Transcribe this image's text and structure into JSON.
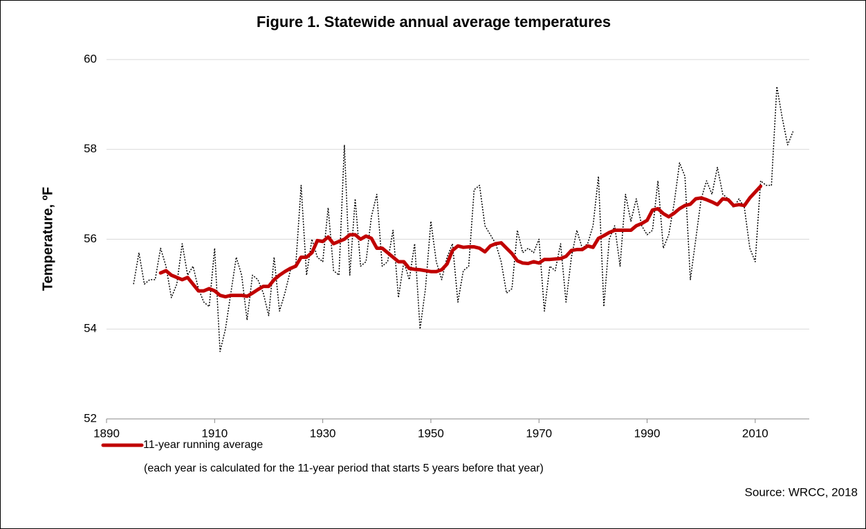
{
  "chart_data": {
    "type": "line",
    "title": "Figure 1. Statewide annual average temperatures",
    "y_label": "Temperature, ºF",
    "legend_note": "(each year is calculated for the 11-year period that starts 5 years before that year)",
    "source": "Source: WRCC, 2018",
    "x": [
      1895,
      1896,
      1897,
      1898,
      1899,
      1900,
      1901,
      1902,
      1903,
      1904,
      1905,
      1906,
      1907,
      1908,
      1909,
      1910,
      1911,
      1912,
      1913,
      1914,
      1915,
      1916,
      1917,
      1918,
      1919,
      1920,
      1921,
      1922,
      1923,
      1924,
      1925,
      1926,
      1927,
      1928,
      1929,
      1930,
      1931,
      1932,
      1933,
      1934,
      1935,
      1936,
      1937,
      1938,
      1939,
      1940,
      1941,
      1942,
      1943,
      1944,
      1945,
      1946,
      1947,
      1948,
      1949,
      1950,
      1951,
      1952,
      1953,
      1954,
      1955,
      1956,
      1957,
      1958,
      1959,
      1960,
      1961,
      1962,
      1963,
      1964,
      1965,
      1966,
      1967,
      1968,
      1969,
      1970,
      1971,
      1972,
      1973,
      1974,
      1975,
      1976,
      1977,
      1978,
      1979,
      1980,
      1981,
      1982,
      1983,
      1984,
      1985,
      1986,
      1987,
      1988,
      1989,
      1990,
      1991,
      1992,
      1993,
      1994,
      1995,
      1996,
      1997,
      1998,
      1999,
      2000,
      2001,
      2002,
      2003,
      2004,
      2005,
      2006,
      2007,
      2008,
      2009,
      2010,
      2011,
      2012,
      2013,
      2014,
      2015,
      2016,
      2017
    ],
    "series": [
      {
        "color": "#000000",
        "style": "dotted",
        "values": [
          55.0,
          55.7,
          55.0,
          55.1,
          55.1,
          55.8,
          55.4,
          54.7,
          55.0,
          55.9,
          55.2,
          55.4,
          54.9,
          54.6,
          54.5,
          55.8,
          53.5,
          54.0,
          54.8,
          55.6,
          55.2,
          54.2,
          55.2,
          55.1,
          54.8,
          54.3,
          55.6,
          54.4,
          54.8,
          55.3,
          55.4,
          57.2,
          55.2,
          56.0,
          55.6,
          55.5,
          56.7,
          55.3,
          55.2,
          58.1,
          55.2,
          56.9,
          55.4,
          55.5,
          56.5,
          57.0,
          55.4,
          55.5,
          56.2,
          54.7,
          55.5,
          55.1,
          55.9,
          54.0,
          54.9,
          56.4,
          55.5,
          55.1,
          55.6,
          55.9,
          54.6,
          55.3,
          55.4,
          57.1,
          57.2,
          56.3,
          56.1,
          55.9,
          55.5,
          54.8,
          54.9,
          56.2,
          55.7,
          55.8,
          55.7,
          56.0,
          54.4,
          55.4,
          55.3,
          55.9,
          54.6,
          55.6,
          56.2,
          55.8,
          55.9,
          56.3,
          57.4,
          54.5,
          56.0,
          56.3,
          55.4,
          57.0,
          56.4,
          56.9,
          56.3,
          56.1,
          56.2,
          57.3,
          55.8,
          56.1,
          56.8,
          57.7,
          57.4,
          55.1,
          56.0,
          56.9,
          57.3,
          57.0,
          57.6,
          57.0,
          56.9,
          56.7,
          56.9,
          56.7,
          55.8,
          55.5,
          57.3,
          57.2,
          57.2,
          59.4,
          58.7,
          58.1,
          58.4
        ]
      },
      {
        "name": "11-year running average",
        "color": "#c00000",
        "style": "solid",
        "values": [
          null,
          null,
          null,
          null,
          null,
          55.25,
          55.3,
          55.2,
          55.15,
          55.1,
          55.15,
          55.0,
          54.85,
          54.85,
          54.9,
          54.85,
          54.75,
          54.72,
          54.75,
          54.75,
          54.75,
          54.73,
          54.8,
          54.88,
          54.95,
          54.95,
          55.1,
          55.2,
          55.28,
          55.35,
          55.4,
          55.6,
          55.6,
          55.7,
          55.97,
          55.95,
          56.05,
          55.9,
          55.95,
          56.0,
          56.1,
          56.1,
          56.0,
          56.07,
          56.02,
          55.8,
          55.8,
          55.7,
          55.6,
          55.5,
          55.5,
          55.35,
          55.33,
          55.32,
          55.3,
          55.28,
          55.28,
          55.32,
          55.45,
          55.75,
          55.85,
          55.82,
          55.83,
          55.83,
          55.8,
          55.72,
          55.85,
          55.9,
          55.92,
          55.8,
          55.68,
          55.52,
          55.47,
          55.46,
          55.5,
          55.47,
          55.55,
          55.55,
          55.56,
          55.57,
          55.62,
          55.75,
          55.77,
          55.77,
          55.85,
          55.82,
          56.02,
          56.08,
          56.15,
          56.2,
          56.2,
          56.2,
          56.2,
          56.3,
          56.35,
          56.42,
          56.65,
          56.68,
          56.57,
          56.5,
          56.58,
          56.68,
          56.75,
          56.78,
          56.9,
          56.92,
          56.88,
          56.83,
          56.77,
          56.9,
          56.88,
          56.75,
          56.77,
          56.75,
          56.92,
          57.05,
          57.18,
          null,
          null,
          null,
          null,
          null,
          null
        ]
      }
    ],
    "xlim": [
      1890,
      2020
    ],
    "xticks": [
      1890,
      1910,
      1930,
      1950,
      1970,
      1990,
      2010
    ],
    "ylim": [
      52,
      60
    ],
    "yticks": [
      52,
      54,
      56,
      58,
      60
    ],
    "grid": true
  }
}
